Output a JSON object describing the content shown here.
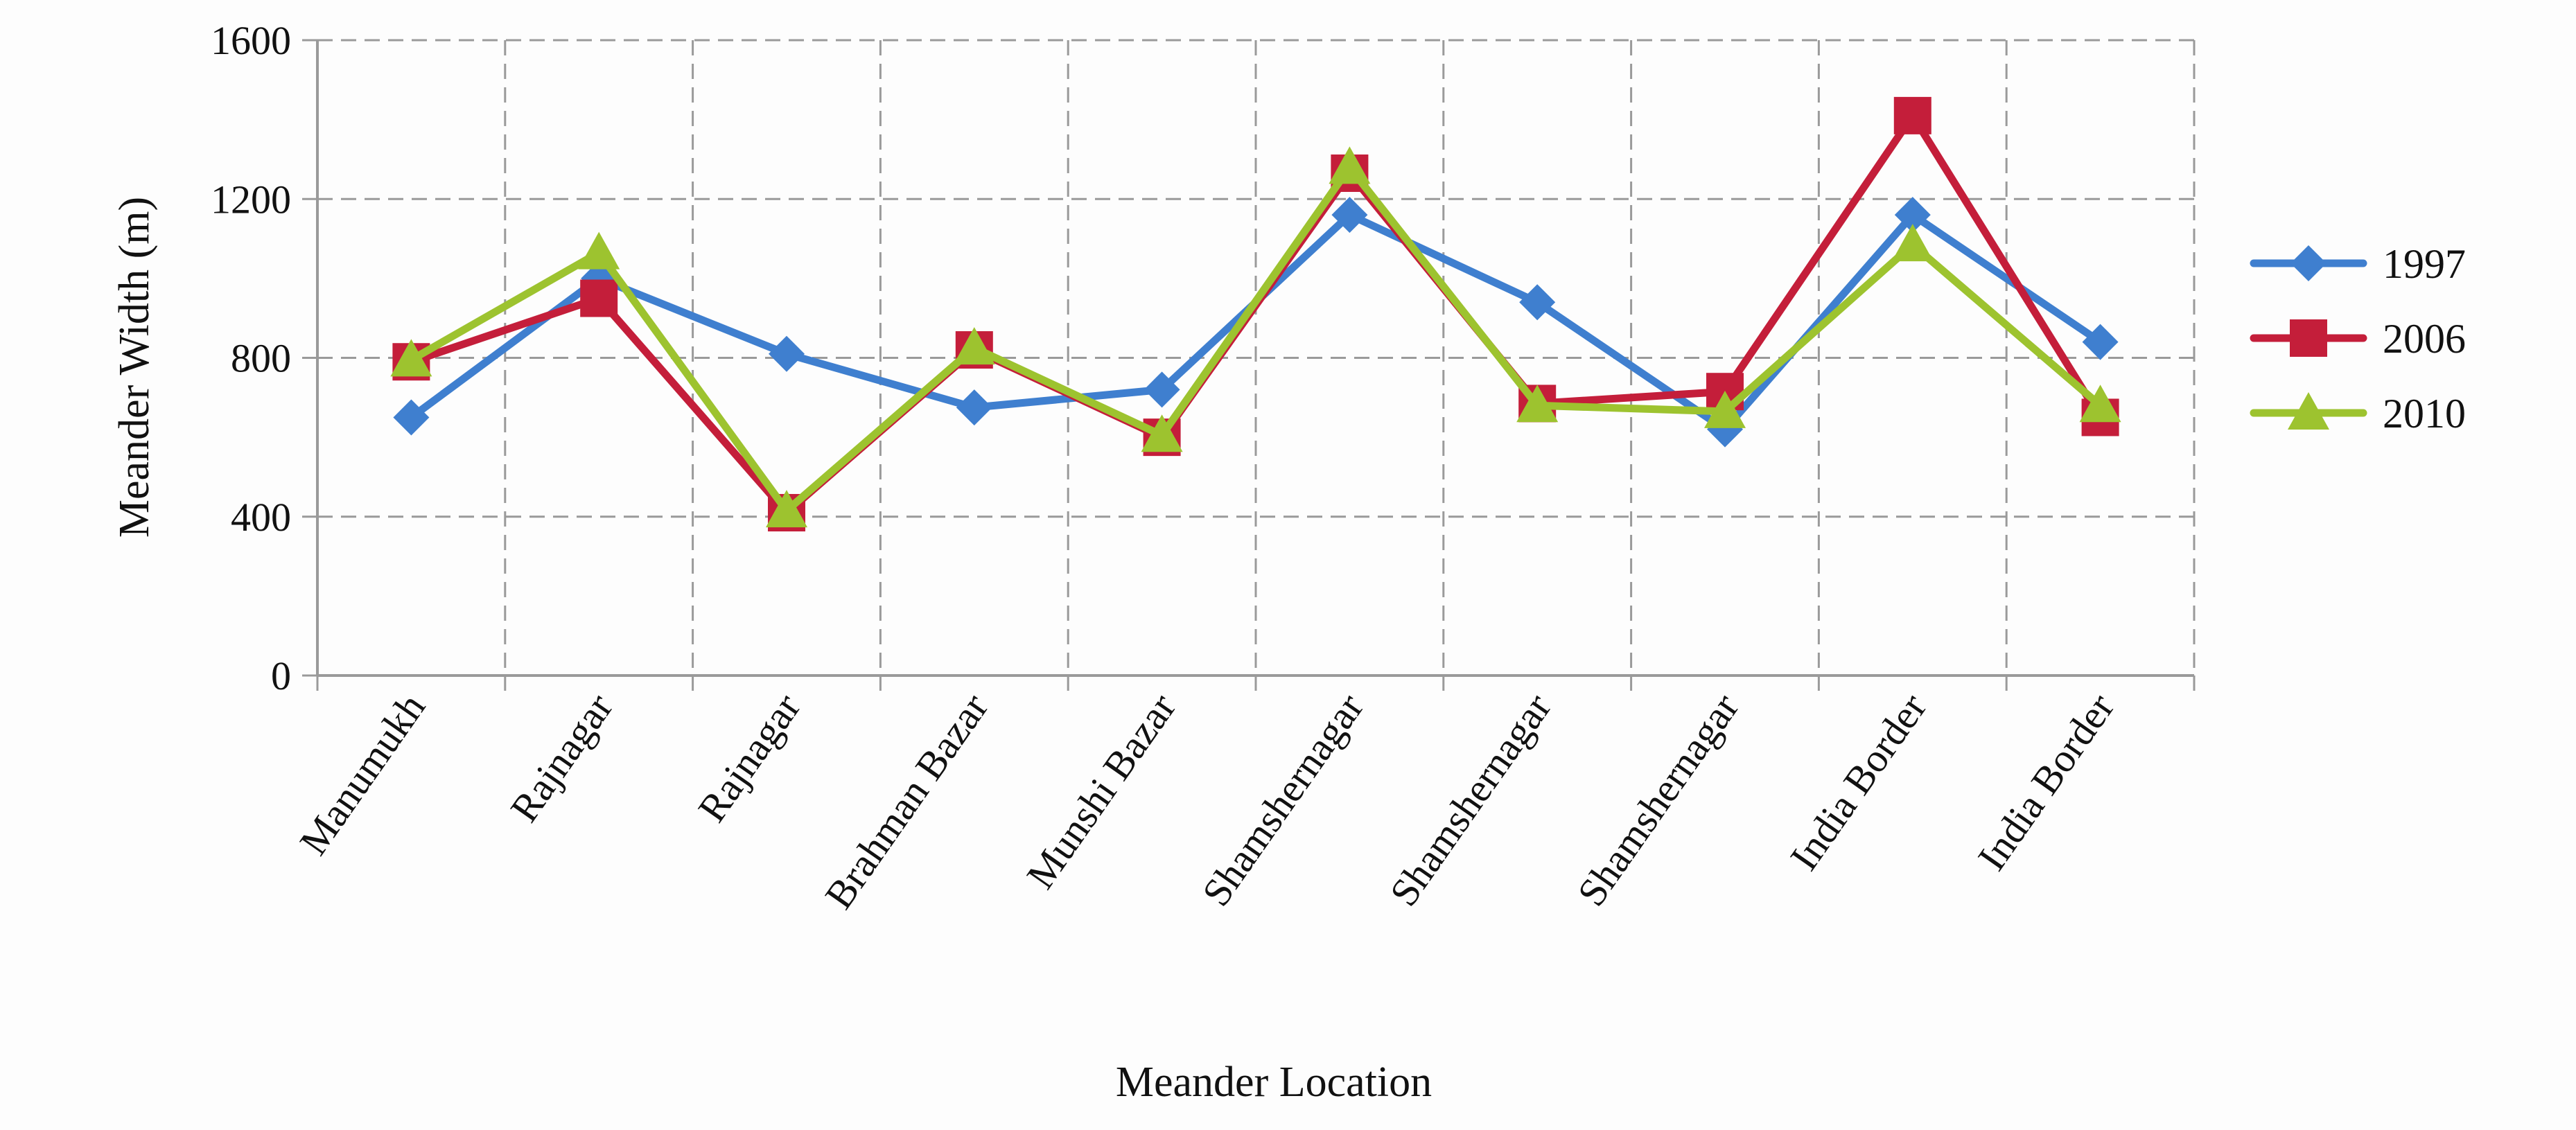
{
  "chart_data": {
    "type": "line",
    "title": "",
    "xlabel": "Meander Location",
    "ylabel": "Meander Width (m)",
    "ylim": [
      0,
      1600
    ],
    "yticks": [
      0,
      400,
      800,
      1200,
      1600
    ],
    "grid": true,
    "grid_style": "dashed",
    "legend_position": "right",
    "categories": [
      "Manumukh",
      "Rajnagar",
      "Rajnagar",
      "Brahman Bazar",
      "Munshi Bazar",
      "Shamshernagar",
      "Shamshernagar",
      "Shamshernagar",
      "India Border",
      "India Border"
    ],
    "series": [
      {
        "name": "1997",
        "color": "#3f7fcf",
        "marker": "diamond",
        "values": [
          650,
          1000,
          810,
          675,
          720,
          1160,
          940,
          620,
          1160,
          840
        ]
      },
      {
        "name": "2006",
        "color": "#c41e3a",
        "marker": "square",
        "values": [
          790,
          950,
          410,
          820,
          600,
          1265,
          685,
          715,
          1410,
          650
        ]
      },
      {
        "name": "2010",
        "color": "#9dc32f",
        "marker": "triangle",
        "values": [
          795,
          1065,
          415,
          825,
          605,
          1280,
          680,
          665,
          1085,
          680
        ]
      }
    ]
  }
}
